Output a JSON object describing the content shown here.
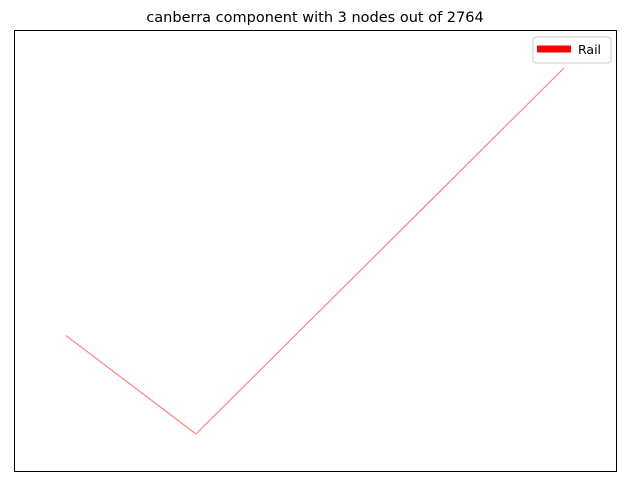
{
  "title": "canberra component with 3 nodes out of 2764",
  "legend": {
    "placement": "top-right",
    "entries": [
      {
        "label": "Rail",
        "color": "#ff0000"
      }
    ]
  },
  "graph": {
    "edge_color": "#ff8080",
    "nodes": [
      {
        "id": "n1",
        "x": 0.0,
        "y": 0.269
      },
      {
        "id": "n2",
        "x": 0.261,
        "y": 0.0
      },
      {
        "id": "n3",
        "x": 1.0,
        "y": 1.0
      }
    ],
    "edges": [
      {
        "from": "n1",
        "to": "n2"
      },
      {
        "from": "n2",
        "to": "n3"
      }
    ]
  }
}
